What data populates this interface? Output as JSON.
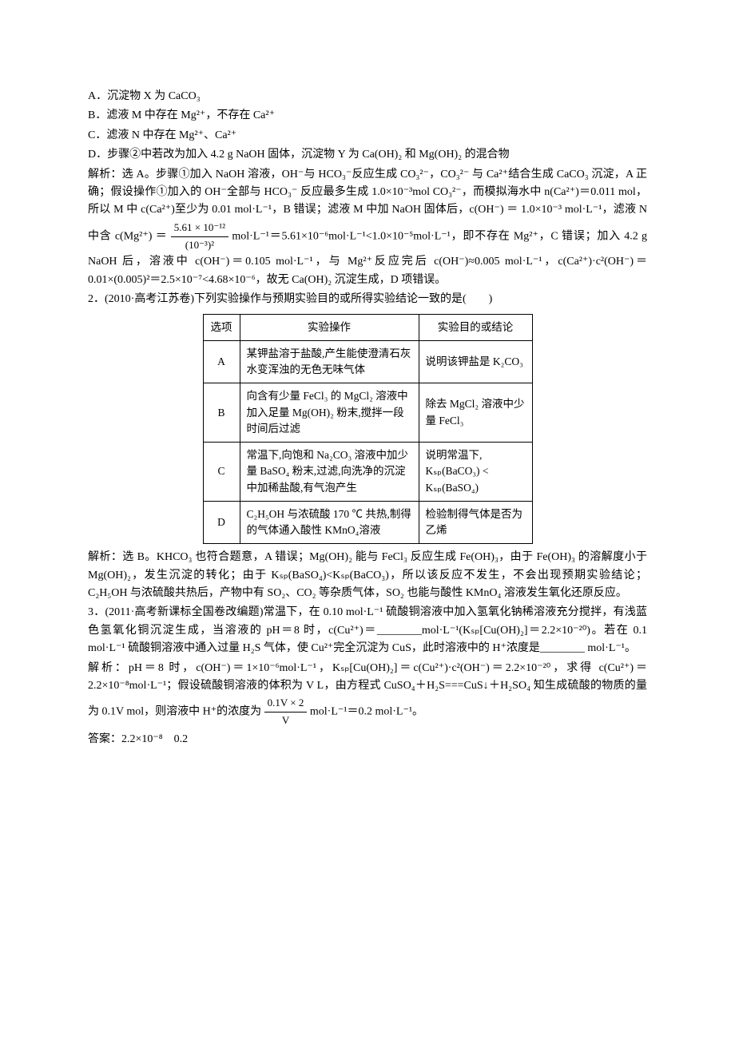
{
  "q1": {
    "optA": "A．沉淀物 X 为 CaCO₃",
    "optB": "B．滤液 M 中存在 Mg²⁺，不存在 Ca²⁺",
    "optC": "C．滤液 N 中存在 Mg²⁺、Ca²⁺",
    "optD": "D．步骤②中若改为加入 4.2 g NaOH 固体，沉淀物 Y 为 Ca(OH)₂ 和 Mg(OH)₂ 的混合物",
    "sol1": "解析：选 A。步骤①加入 NaOH 溶液，OH⁻与 HCO₃⁻反应生成 CO₃²⁻，CO₃²⁻ 与 Ca²⁺结合生成 CaCO₃ 沉淀，A 正确；假设操作①加入的 OH⁻全部与 HCO₃⁻ 反应最多生成 1.0×10⁻³mol CO₃²⁻，而模拟海水中 n(Ca²⁺)＝0.011 mol，所以 M 中 c(Ca²⁺)至少为 0.01 mol·L⁻¹，B 错误；滤液 M 中加 NaOH 固体后，c(OH⁻) ＝ 1.0×10⁻³ mol·L⁻¹，滤液 N 中含 c(Mg²⁺) ＝",
    "frac_num": "5.61 × 10⁻¹²",
    "frac_den": "(10⁻³)²",
    "sol2": " mol·L⁻¹＝5.61×10⁻⁶mol·L⁻¹<1.0×10⁻⁵mol·L⁻¹，即不存在 Mg²⁺，C 错误；加入 4.2 g NaOH 后，溶液中 c(OH⁻)＝0.105 mol·L⁻¹，与 Mg²⁺反应完后 c(OH⁻)≈0.005 mol·L⁻¹，c(Ca²⁺)·c²(OH⁻)＝0.01×(0.005)²＝2.5×10⁻⁷<4.68×10⁻⁶，故无 Ca(OH)₂ 沉淀生成，D 项错误。"
  },
  "q2": {
    "stem": "2．(2010·高考江苏卷)下列实验操作与预期实验目的或所得实验结论一致的是(　　)",
    "table": {
      "headers": [
        "选项",
        "实验操作",
        "实验目的或结论"
      ],
      "rows": [
        {
          "opt": "A",
          "oper": "某钾盐溶于盐酸,产生能使澄清石灰水变浑浊的无色无味气体",
          "concl": "说明该钾盐是 K₂CO₃"
        },
        {
          "opt": "B",
          "oper": "向含有少量 FeCl₃ 的 MgCl₂ 溶液中加入足量 Mg(OH)₂ 粉末,搅拌一段时间后过滤",
          "concl": "除去 MgCl₂ 溶液中少量 FeCl₃"
        },
        {
          "opt": "C",
          "oper": "常温下,向饱和 Na₂CO₃ 溶液中加少量 BaSO₄ 粉末,过滤,向洗净的沉淀中加稀盐酸,有气泡产生",
          "concl": "说明常温下, Kₛₚ(BaCO₃) < Kₛₚ(BaSO₄)"
        },
        {
          "opt": "D",
          "oper": "C₂H₅OH 与浓硫酸 170 ℃ 共热,制得的气体通入酸性 KMnO₄溶液",
          "concl": "检验制得气体是否为乙烯"
        }
      ]
    },
    "sol": "解析：选 B。KHCO₃ 也符合题意，A 错误；Mg(OH)₂ 能与 FeCl₃ 反应生成 Fe(OH)₃，由于 Fe(OH)₃ 的溶解度小于 Mg(OH)₂，发生沉淀的转化；由于 Kₛₚ(BaSO₄)<Kₛₚ(BaCO₃)，所以该反应不发生，不会出现预期实验结论；C₂H₅OH 与浓硫酸共热后，产物中有 SO₂、CO₂ 等杂质气体，SO₂ 也能与酸性 KMnO₄ 溶液发生氧化还原反应。"
  },
  "q3": {
    "stem": "3．(2011·高考新课标全国卷改编题)常温下，在 0.10 mol·L⁻¹ 硫酸铜溶液中加入氢氧化钠稀溶液充分搅拌，有浅蓝色氢氧化铜沉淀生成，当溶液的 pH＝8 时，c(Cu²⁺)＝________mol·L⁻¹(Kₛₚ[Cu(OH)₂]＝2.2×10⁻²⁰)。若在 0.1 mol·L⁻¹ 硫酸铜溶液中通入过量 H₂S 气体，使 Cu²⁺完全沉淀为 CuS，此时溶液中的 H⁺浓度是________ mol·L⁻¹。",
    "sol1": "解析：pH＝8 时，c(OH⁻)＝1×10⁻⁶mol·L⁻¹，Kₛₚ[Cu(OH)₂]＝c(Cu²⁺)·c²(OH⁻)＝2.2×10⁻²⁰，求得 c(Cu²⁺)＝2.2×10⁻⁸mol·L⁻¹；假设硫酸铜溶液的体积为 V L，由方程式 CuSO₄＋H₂S===CuS↓＋H₂SO₄ 知生成硫酸的物质的量为 0.1V mol，则溶液中 H⁺的浓度为",
    "frac_num": "0.1V × 2",
    "frac_den": "V",
    "sol2": "mol·L⁻¹＝0.2 mol·L⁻¹。",
    "ans": "答案：2.2×10⁻⁸　0.2"
  }
}
